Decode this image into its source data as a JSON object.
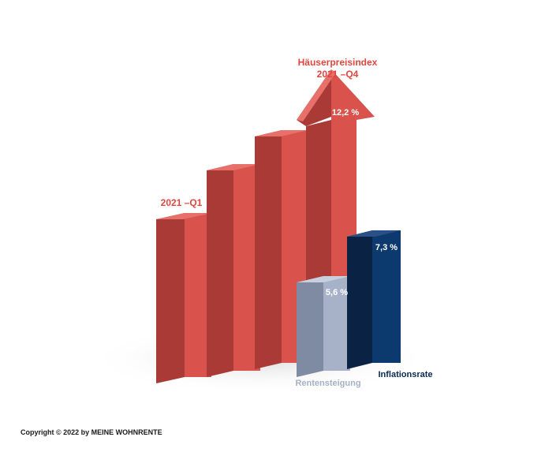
{
  "chart_data": {
    "type": "bar",
    "categories": [
      "2021 –Q1",
      "",
      "",
      "2021 –Q4",
      "Rentensteigung",
      "Inflationsrate"
    ],
    "series": [
      {
        "values": [
          null,
          null,
          null,
          12.2,
          5.6,
          7.3
        ]
      }
    ],
    "bar_labels": [
      "",
      "",
      "",
      "12,2 %",
      "5,6 %",
      "7,3 %"
    ],
    "annotations": {
      "start_label": "2021 –Q1",
      "end_label_line1": "Häuserpreisindex",
      "end_label_line2": "2021 –Q4"
    },
    "xlabel": "",
    "ylabel": "",
    "grid": false
  },
  "colors": {
    "house_front": "#d9534c",
    "house_side": "#a93a36",
    "house_top": "#e8706a",
    "pension_front": "#a7b1c8",
    "pension_side": "#7f8aa3",
    "pension_top": "#c8cfdd",
    "inflation_front": "#0d3a6e",
    "inflation_side": "#0a2244",
    "inflation_top": "#2a5187",
    "red_text": "#e0463f",
    "navy_text": "#0a2a52",
    "grey_text": "#a6b0c6"
  },
  "footer": {
    "copyright": "Copyright © 2022 by MEINE WOHNRENTE"
  }
}
